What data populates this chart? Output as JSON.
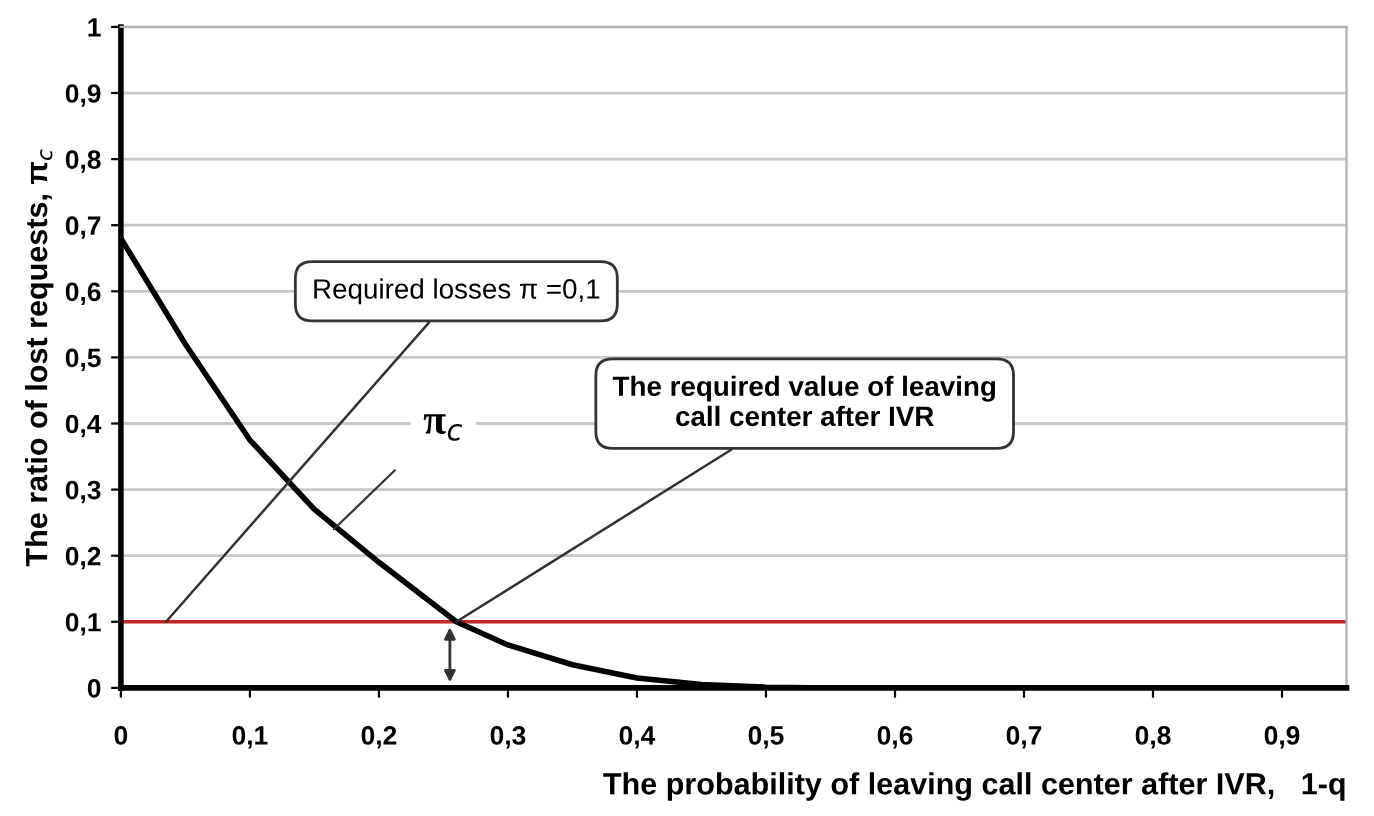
{
  "chart_data": {
    "type": "line",
    "xlabel": "The probability of leaving call center after IVR,   1-q",
    "ylabel": "The ratio of lost requests, π$_{c}$",
    "x": [
      0,
      0.05,
      0.1,
      0.15,
      0.2,
      0.26,
      0.3,
      0.35,
      0.4,
      0.45,
      0.5,
      0.55
    ],
    "series": [
      {
        "color": "#000000",
        "values": [
          0.68,
          0.52,
          0.375,
          0.27,
          0.19,
          0.1,
          0.065,
          0.035,
          0.015,
          0.005,
          0.001,
          0
        ]
      }
    ],
    "xlim": [
      0,
      0.95
    ],
    "ylim": [
      0,
      1
    ],
    "xticks": [
      0,
      {
        "value": 0.1,
        "label": "0,1"
      },
      {
        "value": 0.2,
        "label": "0,2"
      },
      {
        "value": 0.3,
        "label": "0,3"
      },
      {
        "value": 0.4,
        "label": "0,4"
      },
      {
        "value": 0.5,
        "label": "0,5"
      },
      {
        "value": 0.6,
        "label": "0,6"
      },
      {
        "value": 0.7,
        "label": "0,7"
      },
      {
        "value": 0.8,
        "label": "0,8"
      },
      {
        "value": 0.9,
        "label": "0,9"
      }
    ],
    "yticks": [
      0,
      {
        "value": 0.1,
        "label": "0,1"
      },
      {
        "value": 0.2,
        "label": "0,2"
      },
      {
        "value": 0.3,
        "label": "0,3"
      },
      {
        "value": 0.4,
        "label": "0,4"
      },
      {
        "value": 0.5,
        "label": "0,5"
      },
      {
        "value": 0.6,
        "label": "0,6"
      },
      {
        "value": 0.7,
        "label": "0,7"
      },
      {
        "value": 0.8,
        "label": "0,8"
      },
      {
        "value": 0.9,
        "label": "0,9"
      },
      1
    ],
    "ref_lines": [
      {
        "axis": "y",
        "value": 0.1,
        "color": "#c0282d"
      }
    ],
    "annotations": [
      {
        "text": "Required losses π =0,1",
        "x": 0.035,
        "y": 0.1
      },
      {
        "text": "The required value of leaving\ncall center after IVR",
        "x": 0.26,
        "y": 0.1
      },
      {
        "text": "π$_{c}$",
        "x": 0.165,
        "y": 0.24
      }
    ],
    "grid": "y",
    "marker": "none",
    "line_style": "solid"
  }
}
